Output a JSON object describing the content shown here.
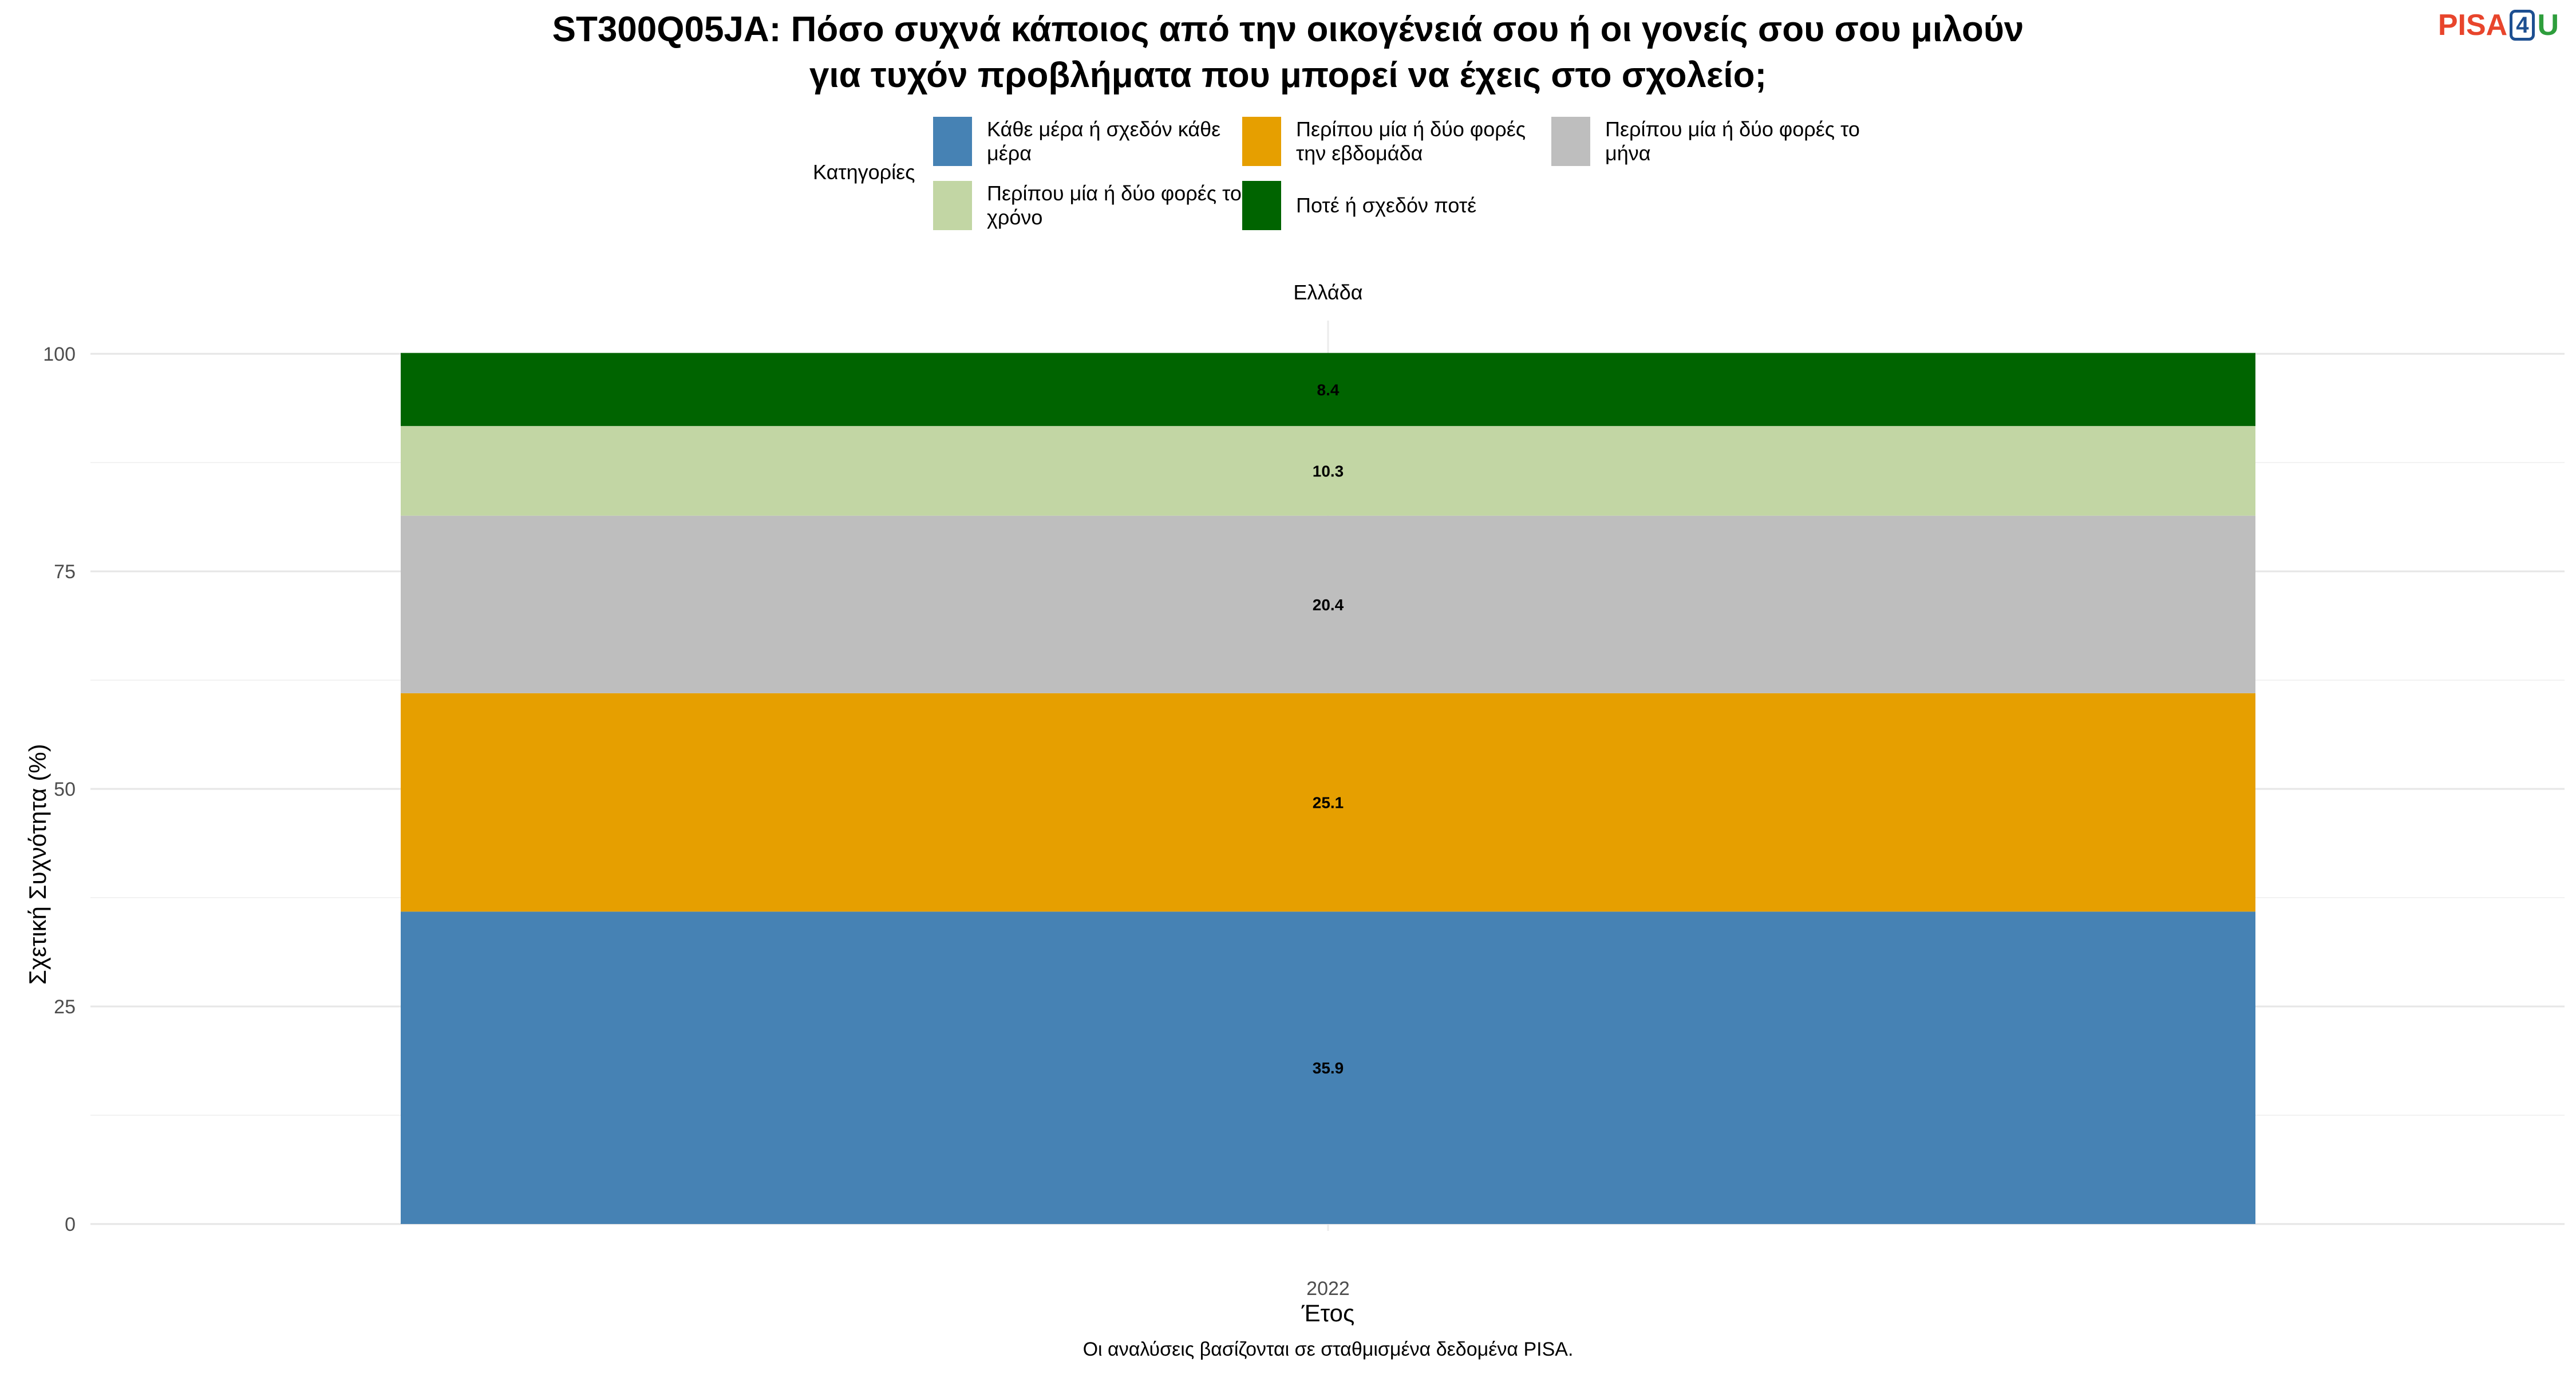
{
  "title_line1": "ST300Q05JA: Πόσο συχνά κάποιος από την οικογένειά σου ή οι γονείς σου σου μιλούν",
  "title_line2": "για τυχόν προβλήματα που μπορεί να έχεις στο σχολείο;",
  "logo": {
    "pisa": "PISA",
    "four": "4",
    "u": "U"
  },
  "caption": "Οι αναλύσεις βασίζονται σε σταθμισμένα δεδομένα PISA.",
  "chart_data": {
    "type": "bar",
    "stacked": true,
    "facet": "Ελλάδα",
    "categories": [
      "2022"
    ],
    "xlabel": "Έτος",
    "ylabel": "Σχετική Συχνότητα (%)",
    "ylim": [
      0,
      100
    ],
    "yticks": [
      0,
      25,
      50,
      75,
      100
    ],
    "legend_title": "Κατηγορίες",
    "legend_position": "top",
    "grid": true,
    "series": [
      {
        "name": "Κάθε μέρα ή σχεδόν κάθε μέρα",
        "values": [
          35.9
        ],
        "color": "#4682b4"
      },
      {
        "name": "Περίπου μία ή δύο φορές την εβδομάδα",
        "values": [
          25.1
        ],
        "color": "#e69f00"
      },
      {
        "name": "Περίπου μία ή δύο φορές το μήνα",
        "values": [
          20.4
        ],
        "color": "#bebebe"
      },
      {
        "name": "Περίπου μία ή δύο φορές το χρόνο",
        "values": [
          10.3
        ],
        "color": "#c2d6a4"
      },
      {
        "name": "Ποτέ ή σχεδόν ποτέ",
        "values": [
          8.4
        ],
        "color": "#006400"
      }
    ]
  }
}
